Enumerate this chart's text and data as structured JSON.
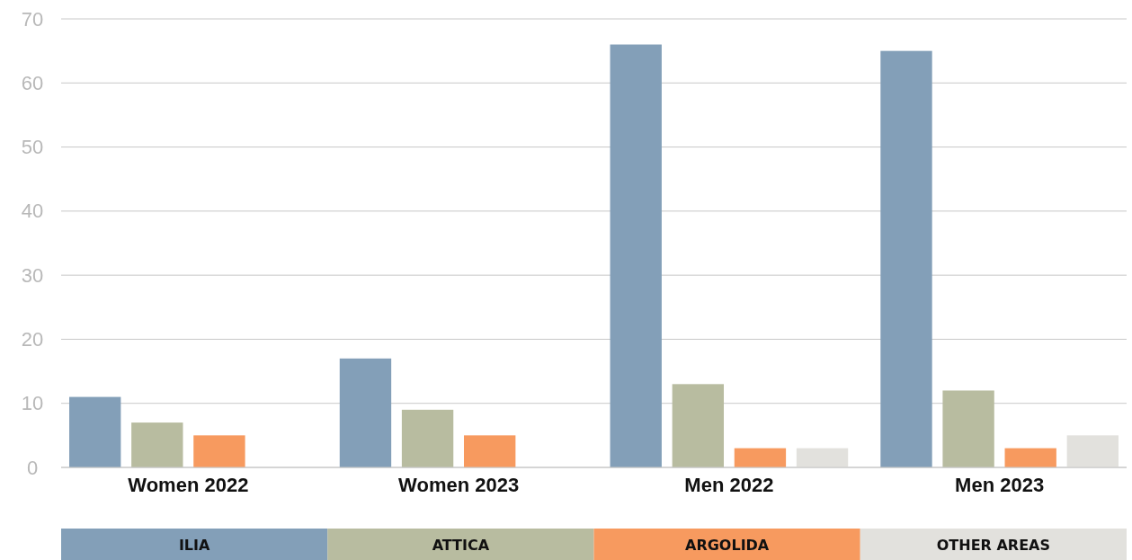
{
  "chart_data": {
    "type": "bar",
    "categories": [
      "Women 2022",
      "Women 2023",
      "Men 2022",
      "Men 2023"
    ],
    "series": [
      {
        "name": "ILIA",
        "color": "#839fb8",
        "values": [
          11,
          17,
          66,
          65
        ]
      },
      {
        "name": "ATTICA",
        "color": "#b8bca0",
        "values": [
          7,
          9,
          13,
          12
        ]
      },
      {
        "name": "ARGOLIDA",
        "color": "#f79a5f",
        "values": [
          5,
          5,
          3,
          3
        ]
      },
      {
        "name": "OTHER AREAS",
        "color": "#e2e1dd",
        "values": [
          null,
          null,
          3,
          5
        ]
      }
    ],
    "ylim": [
      0,
      70
    ],
    "yticks": [
      0,
      10,
      20,
      30,
      40,
      50,
      60,
      70
    ],
    "grid": "y",
    "legend": "bottom"
  }
}
